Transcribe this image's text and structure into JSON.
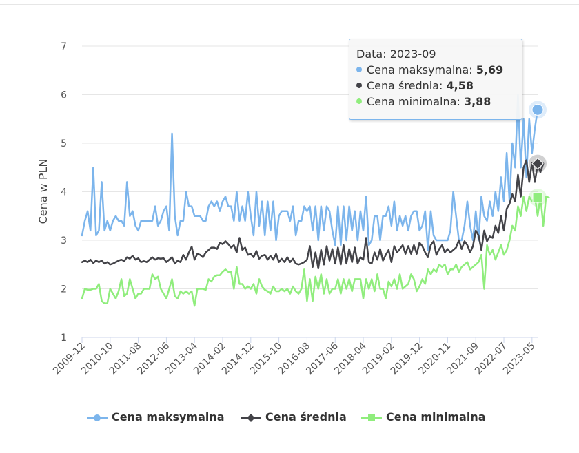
{
  "chart_data": {
    "type": "line",
    "title": "",
    "ylabel": "Cena w PLN",
    "xlabel": "",
    "ylim": [
      1,
      7
    ],
    "yticks": [
      1,
      2,
      3,
      4,
      5,
      6,
      7
    ],
    "xtick_labels": [
      "2009-12",
      "2010-10",
      "2011-08",
      "2012-06",
      "2013-04",
      "2014-02",
      "2014-12",
      "2015-10",
      "2016-08",
      "2017-06",
      "2018-04",
      "2019-02",
      "2019-12",
      "2020-11",
      "2021-09",
      "2022-07",
      "2023-05"
    ],
    "legend_position": "bottom",
    "grid": "horizontal",
    "series": [
      {
        "name": "Cena maksymalna",
        "color": "#7cb5ec",
        "marker": "circle",
        "values": [
          3.1,
          3.4,
          3.6,
          3.2,
          4.5,
          3.1,
          3.2,
          4.2,
          3.2,
          3.4,
          3.2,
          3.4,
          3.5,
          3.4,
          3.4,
          3.3,
          4.2,
          3.5,
          3.6,
          3.3,
          3.2,
          3.4,
          3.4,
          3.4,
          3.4,
          3.4,
          3.7,
          3.3,
          3.4,
          3.6,
          3.7,
          3.2,
          5.2,
          3.5,
          3.1,
          3.4,
          3.4,
          4.0,
          3.7,
          3.7,
          3.5,
          3.5,
          3.5,
          3.4,
          3.4,
          3.7,
          3.8,
          3.7,
          3.8,
          3.6,
          3.8,
          3.9,
          3.7,
          3.7,
          3.4,
          4.0,
          3.4,
          3.7,
          3.4,
          4.0,
          3.5,
          3.1,
          4.0,
          3.3,
          3.8,
          3.1,
          3.8,
          3.2,
          3.8,
          3.0,
          3.5,
          3.6,
          3.6,
          3.6,
          3.4,
          3.7,
          3.1,
          3.4,
          3.4,
          3.7,
          3.6,
          3.7,
          3.2,
          3.7,
          3.0,
          3.7,
          3.2,
          3.7,
          3.6,
          3.2,
          2.9,
          3.7,
          2.9,
          3.7,
          3.0,
          3.7,
          3.2,
          3.6,
          3.0,
          3.6,
          3.2,
          3.9,
          2.9,
          3.0,
          3.5,
          3.5,
          3.0,
          3.5,
          3.5,
          3.7,
          3.3,
          3.8,
          3.2,
          3.5,
          3.3,
          3.5,
          3.2,
          3.5,
          3.6,
          3.6,
          3.2,
          3.3,
          3.6,
          2.8,
          3.6,
          3.1,
          3.0,
          3.0,
          3.0,
          3.0,
          3.0,
          3.2,
          4.0,
          3.5,
          3.0,
          3.0,
          3.3,
          3.8,
          3.3,
          3.0,
          3.6,
          3.0,
          3.9,
          3.5,
          3.4,
          3.8,
          3.5,
          4.0,
          3.6,
          4.3,
          3.8,
          4.8,
          3.8,
          5.0,
          4.5,
          6.0,
          4.5,
          5.5,
          4.3,
          5.5,
          4.8,
          5.3,
          5.69
        ],
        "last_label": "5,69"
      },
      {
        "name": "Cena średnia",
        "color": "#434348",
        "marker": "diamond",
        "values": [
          2.55,
          2.58,
          2.55,
          2.6,
          2.53,
          2.58,
          2.55,
          2.58,
          2.52,
          2.55,
          2.5,
          2.52,
          2.55,
          2.58,
          2.6,
          2.57,
          2.65,
          2.62,
          2.68,
          2.6,
          2.63,
          2.55,
          2.57,
          2.55,
          2.6,
          2.65,
          2.6,
          2.63,
          2.62,
          2.63,
          2.55,
          2.6,
          2.65,
          2.52,
          2.58,
          2.55,
          2.7,
          2.6,
          2.75,
          2.87,
          2.6,
          2.72,
          2.7,
          2.65,
          2.75,
          2.8,
          2.85,
          2.85,
          2.82,
          2.95,
          2.92,
          2.98,
          2.92,
          2.85,
          2.9,
          2.75,
          3.05,
          2.8,
          2.85,
          2.7,
          2.72,
          2.65,
          2.78,
          2.62,
          2.68,
          2.7,
          2.6,
          2.68,
          2.6,
          2.72,
          2.55,
          2.62,
          2.55,
          2.65,
          2.55,
          2.62,
          2.52,
          2.5,
          2.52,
          2.55,
          2.6,
          2.88,
          2.45,
          2.75,
          2.42,
          2.8,
          2.5,
          2.88,
          2.58,
          2.82,
          2.52,
          2.85,
          2.5,
          2.9,
          2.52,
          2.82,
          2.55,
          2.85,
          2.52,
          2.65,
          2.6,
          3.05,
          2.55,
          2.52,
          2.75,
          2.6,
          2.82,
          2.58,
          2.7,
          2.8,
          2.55,
          2.88,
          2.75,
          2.82,
          2.9,
          2.72,
          2.88,
          2.72,
          2.9,
          2.72,
          2.95,
          2.88,
          2.75,
          2.65,
          2.9,
          2.98,
          2.7,
          2.82,
          2.9,
          2.75,
          2.82,
          2.75,
          2.8,
          2.85,
          3.0,
          2.82,
          2.98,
          2.9,
          2.75,
          2.88,
          3.2,
          3.1,
          2.8,
          3.2,
          2.98,
          3.08,
          3.05,
          3.3,
          3.15,
          3.5,
          3.2,
          3.65,
          3.75,
          3.95,
          3.8,
          4.35,
          3.9,
          4.5,
          4.65,
          4.2,
          4.6,
          4.2,
          4.55,
          4.4,
          4.58
        ],
        "last_label": "4,58"
      },
      {
        "name": "Cena minimalna",
        "color": "#90ed7d",
        "marker": "square",
        "values": [
          1.8,
          2.0,
          1.98,
          1.98,
          2.0,
          2.0,
          2.1,
          1.75,
          1.7,
          1.7,
          2.0,
          1.9,
          1.8,
          1.95,
          2.2,
          1.85,
          1.9,
          2.2,
          2.0,
          1.8,
          1.9,
          1.9,
          2.0,
          2.0,
          2.0,
          2.3,
          2.2,
          2.25,
          2.0,
          1.9,
          1.8,
          2.0,
          2.2,
          1.85,
          1.8,
          1.95,
          1.9,
          1.95,
          1.9,
          1.95,
          1.65,
          2.0,
          2.0,
          2.0,
          1.98,
          2.2,
          2.15,
          2.25,
          2.28,
          2.28,
          2.35,
          2.4,
          2.35,
          2.35,
          2.0,
          2.45,
          2.1,
          2.1,
          2.0,
          2.05,
          2.0,
          2.1,
          1.9,
          2.2,
          2.05,
          1.98,
          1.95,
          1.9,
          2.05,
          1.95,
          1.95,
          2.0,
          1.95,
          2.0,
          1.9,
          2.05,
          1.95,
          1.9,
          2.0,
          2.4,
          1.75,
          2.2,
          1.75,
          2.25,
          2.0,
          2.3,
          1.9,
          2.2,
          1.9,
          2.0,
          2.0,
          2.2,
          1.9,
          2.2,
          2.0,
          2.2,
          1.95,
          2.2,
          2.2,
          2.2,
          1.8,
          2.2,
          2.0,
          2.2,
          1.95,
          2.3,
          2.0,
          2.0,
          1.8,
          2.15,
          2.05,
          2.2,
          2.0,
          2.3,
          2.0,
          2.05,
          2.1,
          2.3,
          2.2,
          1.95,
          2.05,
          2.2,
          2.1,
          2.4,
          2.3,
          2.4,
          2.35,
          2.5,
          2.45,
          2.5,
          2.3,
          2.4,
          2.4,
          2.5,
          2.35,
          2.45,
          2.5,
          2.55,
          2.4,
          2.45,
          2.5,
          2.55,
          2.7,
          2.0,
          2.9,
          2.7,
          2.8,
          2.6,
          2.75,
          2.9,
          2.7,
          2.8,
          3.0,
          3.3,
          3.2,
          3.7,
          3.5,
          3.9,
          3.6,
          3.9,
          3.8,
          3.9,
          3.5,
          3.9,
          3.3,
          3.9,
          3.88
        ],
        "last_label": "3,88"
      }
    ]
  },
  "tooltip": {
    "date_label": "Data:",
    "date_value": "2023-09",
    "rows": [
      {
        "name": "Cena maksymalna",
        "value": "5,69",
        "color": "#7cb5ec"
      },
      {
        "name": "Cena średnia",
        "value": "4,58",
        "color": "#434348"
      },
      {
        "name": "Cena minimalna",
        "value": "3,88",
        "color": "#90ed7d"
      }
    ]
  },
  "legend": [
    {
      "label": "Cena maksymalna",
      "color": "#7cb5ec",
      "marker": "circle"
    },
    {
      "label": "Cena średnia",
      "color": "#434348",
      "marker": "diamond"
    },
    {
      "label": "Cena minimalna",
      "color": "#90ed7d",
      "marker": "square"
    }
  ]
}
